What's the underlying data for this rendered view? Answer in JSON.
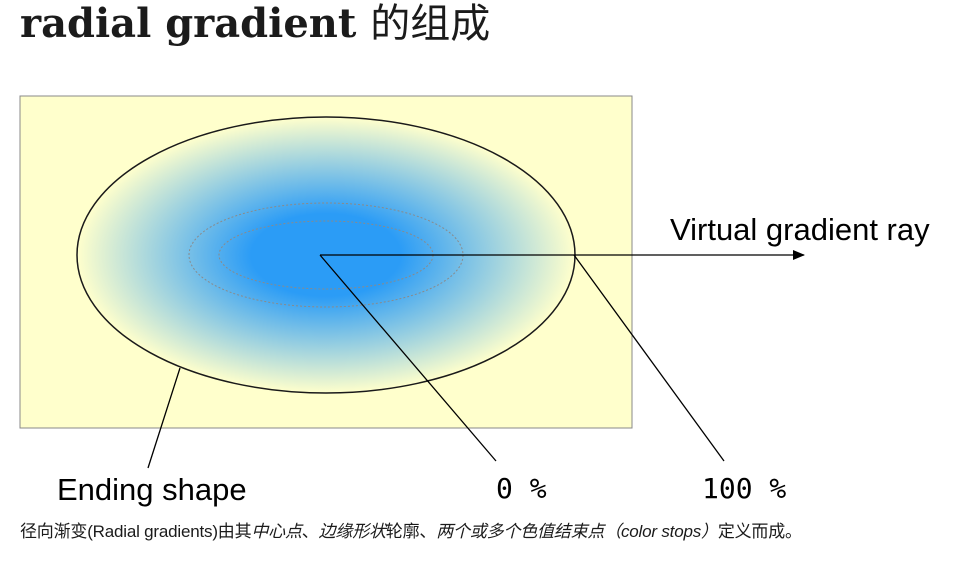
{
  "title": {
    "strong": "radial gradient",
    "rest": "的组成"
  },
  "figure": {
    "box_fill": "#ffffcc",
    "gradient_center_color": "#2b9cf6",
    "gradient_edge_color": "#ffffcc",
    "labels": {
      "virtual_ray": "Virtual gradient ray",
      "ending_shape": "Ending shape",
      "zero_percent": "0 %",
      "hundred_percent": "100 %"
    }
  },
  "caption": {
    "p1": "径向渐变(Radial gradients)由其",
    "e1": "中心点",
    "p2": "、",
    "e2": "边缘形状",
    "p3": "轮廓、",
    "e3": "两个或多个色值结束点（color stops）",
    "p4": "定义而成。"
  }
}
